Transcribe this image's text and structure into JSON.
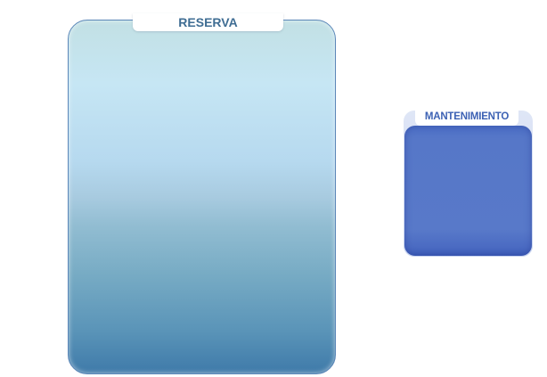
{
  "tanks": {
    "reserva": {
      "label": "RESERVA",
      "color_top": "#c2e0e4",
      "color_bottom": "#3f7aa9"
    },
    "mantenimiento": {
      "label": "MANTENIMIENTO",
      "color": "#5677c8"
    }
  }
}
